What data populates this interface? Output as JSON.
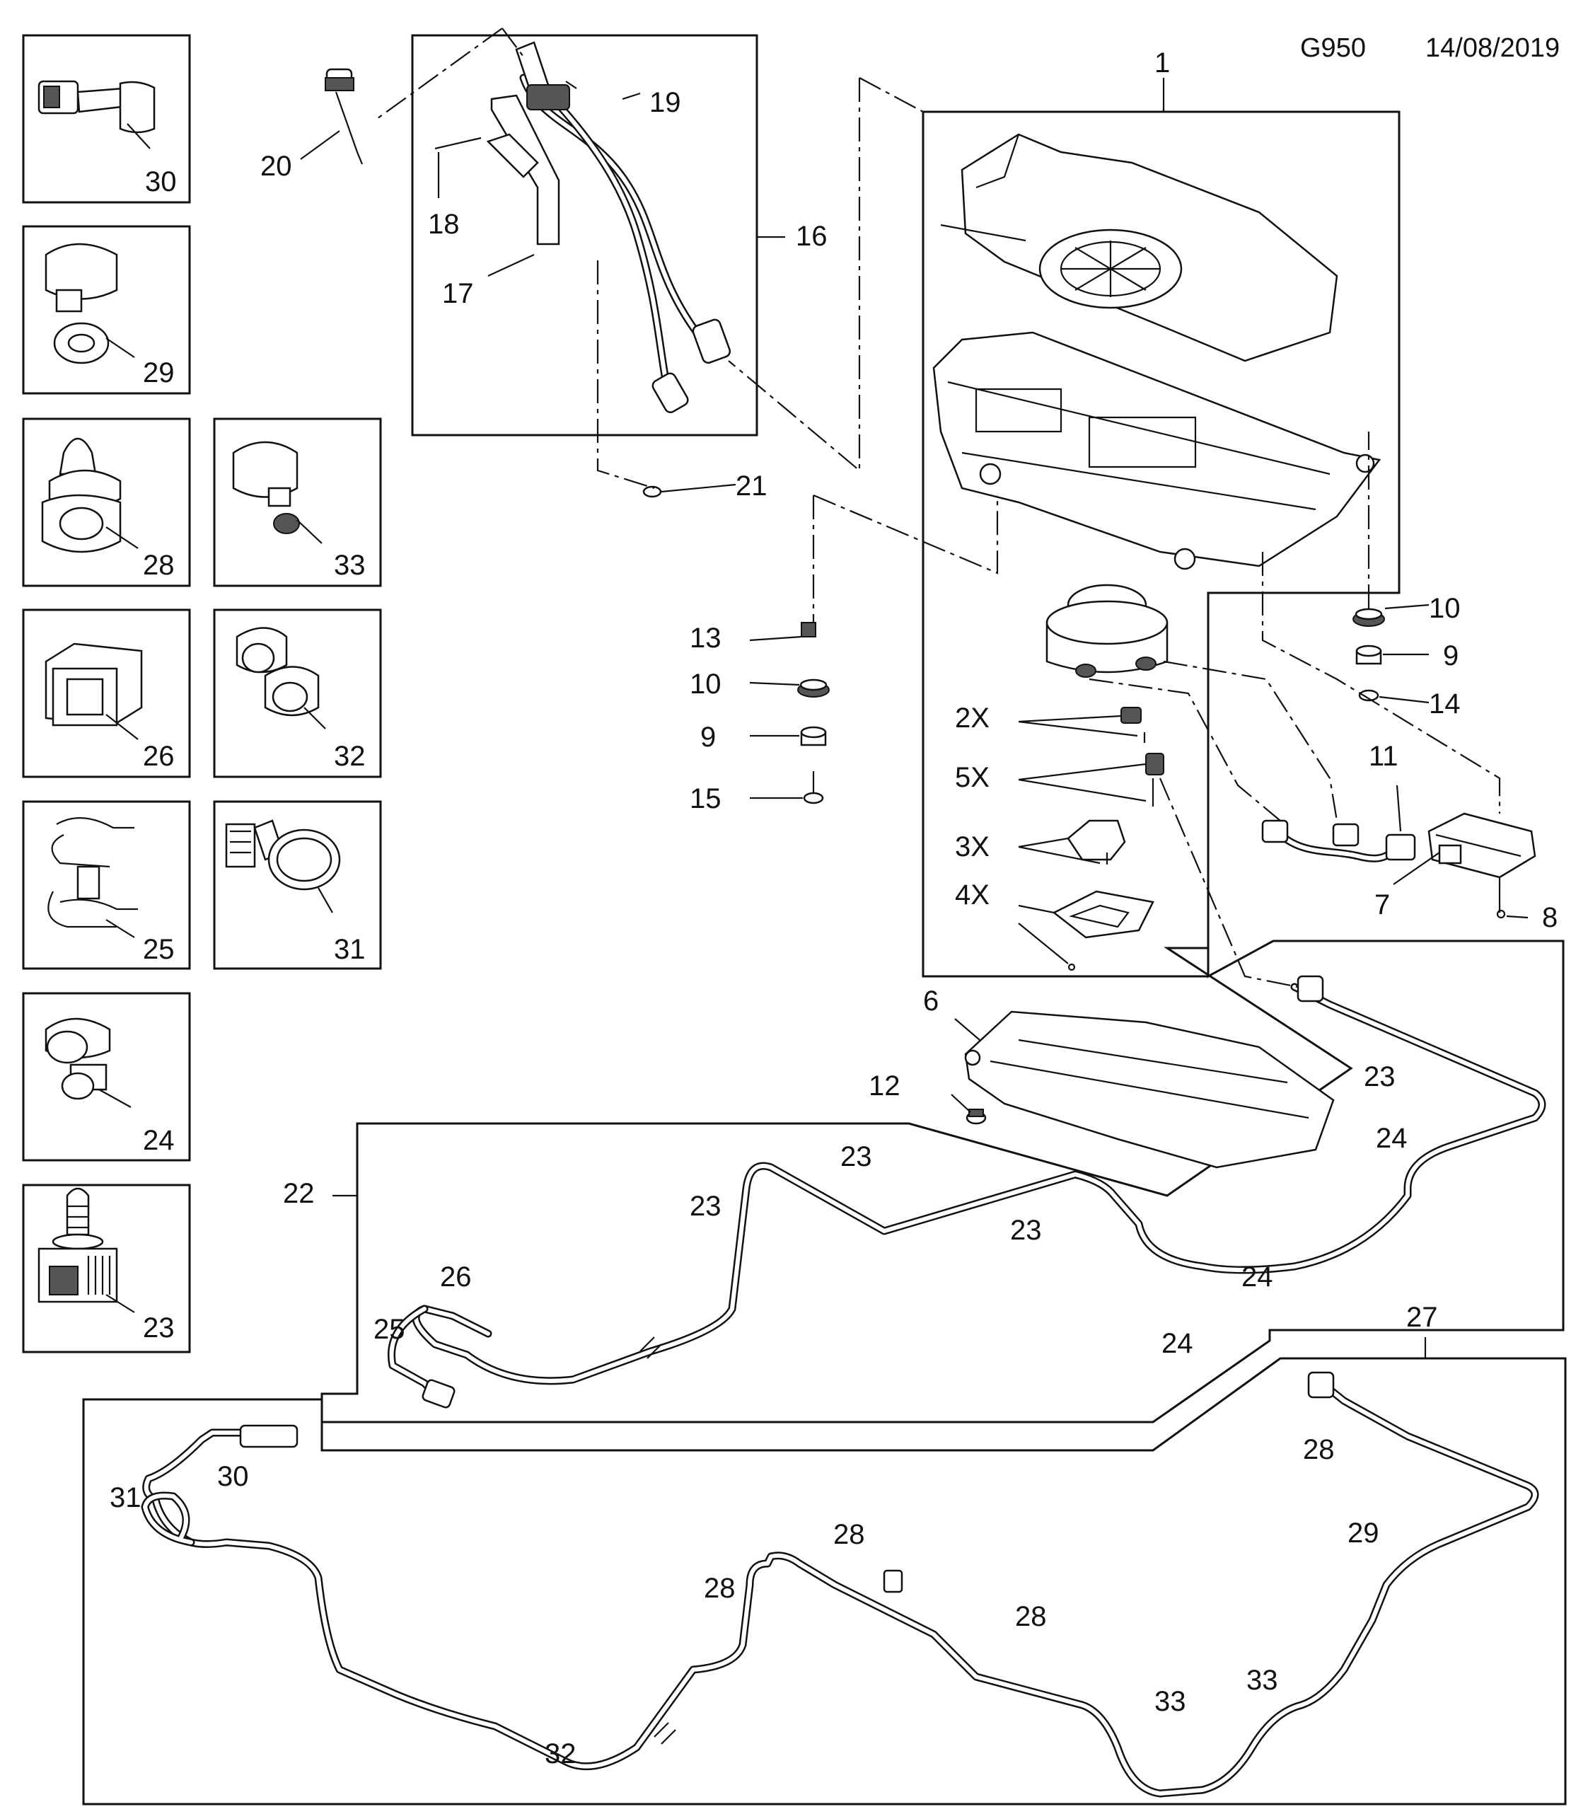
{
  "header": {
    "code": "G950",
    "date": "14/08/2019"
  },
  "labels": {
    "l1": "1",
    "l2x": "2X",
    "l3x": "3X",
    "l4x": "4X",
    "l5x": "5X",
    "l6": "6",
    "l7": "7",
    "l8": "8",
    "l9a": "9",
    "l9b": "9",
    "l10a": "10",
    "l10b": "10",
    "l11": "11",
    "l12": "12",
    "l13": "13",
    "l14": "14",
    "l15": "15",
    "l16": "16",
    "l17": "17",
    "l18": "18",
    "l19": "19",
    "l20": "20",
    "l21": "21",
    "l22": "22",
    "l23a": "23",
    "l23b": "23",
    "l23c": "23",
    "l23d": "23",
    "l24a": "24",
    "l24b": "24",
    "l24c": "24",
    "l25": "25",
    "l26": "26",
    "l27": "27",
    "l28a": "28",
    "l28b": "28",
    "l28c": "28",
    "l28d": "28",
    "l29": "29",
    "l30": "30",
    "l31": "31",
    "l32": "32",
    "l33a": "33",
    "l33b": "33"
  },
  "inset_labels": {
    "i30": "30",
    "i29": "29",
    "i28": "28",
    "i33": "33",
    "i26": "26",
    "i32": "32",
    "i25": "25",
    "i31": "31",
    "i24": "24",
    "i23": "23"
  }
}
